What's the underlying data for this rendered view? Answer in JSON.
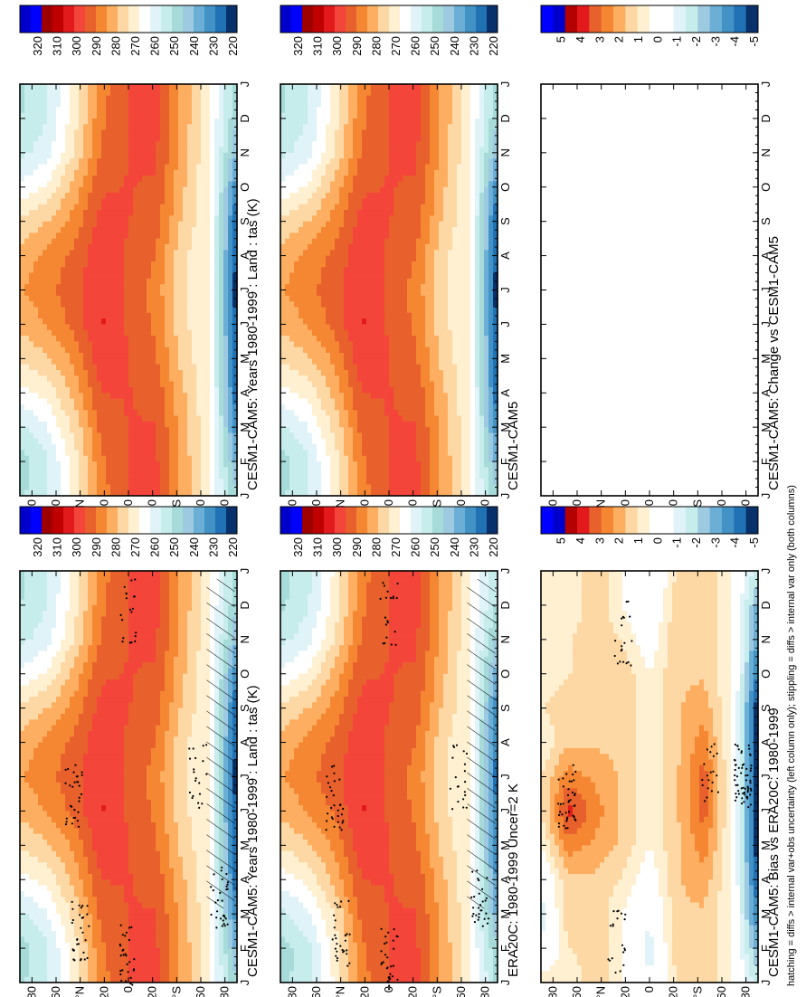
{
  "footer": "hatching = diffs > internal var+obs uncertainty (left column only); stippling = diffs > internal var only (both columns)",
  "month_labels": [
    "J",
    "F",
    "M",
    "A",
    "M",
    "J",
    "J",
    "A",
    "S",
    "O",
    "N",
    "D",
    "J"
  ],
  "y_axis": {
    "lat_max": 90,
    "tick_values": [
      80,
      60,
      40,
      20,
      0,
      -20,
      -40,
      -60,
      -80
    ],
    "tick_labels": [
      "80",
      "60",
      "°N",
      "20",
      "0",
      "20",
      "°S",
      "60",
      "80"
    ]
  },
  "level_colors": {
    "abs": [
      "#08306b",
      "#2171b5",
      "#4292c6",
      "#6baed6",
      "#9ecae1",
      "#a6dbd9",
      "#c6ecec",
      "#e0f3f8",
      "#ffffff",
      "#fff0d2",
      "#fdd8a4",
      "#fdae61",
      "#f58732",
      "#e8602c",
      "#f4453a",
      "#e31a1c",
      "#c00000",
      "#9e0000",
      "#0000ff",
      "#0000cc"
    ],
    "diff": [
      "#08306b",
      "#2171b5",
      "#4292c6",
      "#6baed6",
      "#9ecae1",
      "#c6ecec",
      "#e0f3f8",
      "#ffffff",
      "#ffffff",
      "#fff0d2",
      "#fdd8a4",
      "#fdae61",
      "#f58732",
      "#e8602c",
      "#e31a1c",
      "#b30000",
      "#0000cc",
      "#0000ff"
    ]
  },
  "panels": [
    {
      "id": "model-top",
      "title": "CESM1-CAM5: Years 1980-1999 : Land : tas (K)",
      "kind": "abs",
      "hatch": true,
      "stipple": true
    },
    {
      "id": "model-top-right",
      "title": "CESM1-CAM5: Years 1980-1999 : Land : tas (K)",
      "kind": "abs",
      "hatch": false,
      "stipple": false
    },
    {
      "id": "obs",
      "title": "ERA20C: 1980-1999 Uncer=2 K",
      "kind": "abs",
      "hatch": true,
      "stipple": true
    },
    {
      "id": "model-mid-right",
      "title": "CESM1-CAM5",
      "kind": "abs",
      "hatch": false,
      "stipple": false
    },
    {
      "id": "bias",
      "title": "CESM1-CAM5: Bias vs ERA20C: 1980-1999",
      "kind": "diff",
      "hatch": false,
      "stipple": true
    },
    {
      "id": "change",
      "title": "CESM1-CAM5: Change vs CESM1-CAM5",
      "kind": "blank",
      "hatch": false,
      "stipple": false
    }
  ],
  "colorbars": [
    {
      "id": "cb-top-left",
      "labels": [
        "320",
        "310",
        "300",
        "290",
        "280",
        "270",
        "260",
        "250",
        "240",
        "230",
        "220"
      ]
    },
    {
      "id": "cb-top-right",
      "labels": [
        "320",
        "310",
        "300",
        "290",
        "280",
        "270",
        "260",
        "250",
        "240",
        "230",
        "220"
      ]
    },
    {
      "id": "cb-mid-left",
      "labels": [
        "320",
        "310",
        "300",
        "290",
        "280",
        "270",
        "260",
        "250",
        "240",
        "230",
        "220"
      ]
    },
    {
      "id": "cb-mid-right",
      "labels": [
        "320",
        "310",
        "300",
        "290",
        "280",
        "270",
        "260",
        "250",
        "240",
        "230",
        "220"
      ]
    },
    {
      "id": "cb-bot-left",
      "labels": [
        "5",
        "4",
        "3",
        "2",
        "1",
        "0",
        "-1",
        "-2",
        "-3",
        "-4",
        "-5"
      ]
    },
    {
      "id": "cb-bot-right",
      "labels": [
        "5",
        "4",
        "3",
        "2",
        "1",
        "0",
        "-1",
        "-2",
        "-3",
        "-4",
        "-5"
      ]
    }
  ],
  "chart_data": [
    {
      "type": "heatmap",
      "panel": "model-top",
      "title": "CESM1-CAM5: Years 1980-1999 : Land : tas (K)",
      "xlabel": "month",
      "ylabel": "latitude",
      "clim": [
        220,
        320
      ],
      "x": [
        "J",
        "F",
        "M",
        "A",
        "M",
        "J",
        "J",
        "A",
        "S",
        "O",
        "N",
        "D",
        "J"
      ],
      "y": [
        80,
        60,
        40,
        20,
        0,
        -20,
        -40,
        -60,
        -80
      ],
      "z": [
        [
          252,
          250,
          258,
          268,
          276,
          283,
          286,
          284,
          276,
          266,
          257,
          253,
          252
        ],
        [
          258,
          258,
          264,
          272,
          280,
          287,
          290,
          288,
          281,
          271,
          262,
          259,
          258
        ],
        [
          272,
          273,
          277,
          283,
          288,
          294,
          296,
          294,
          289,
          283,
          276,
          273,
          272
        ],
        [
          290,
          291,
          294,
          298,
          302,
          304,
          303,
          302,
          300,
          297,
          293,
          291,
          290
        ],
        [
          298,
          298,
          298,
          298,
          298,
          297,
          297,
          297,
          298,
          298,
          298,
          298,
          298
        ],
        [
          299,
          299,
          298,
          296,
          293,
          291,
          290,
          292,
          295,
          297,
          299,
          299,
          299
        ],
        [
          285,
          285,
          284,
          282,
          279,
          277,
          276,
          277,
          280,
          282,
          284,
          285,
          285
        ],
        [
          270,
          270,
          270,
          270,
          270,
          270,
          270,
          270,
          270,
          270,
          270,
          270,
          270
        ],
        [
          248,
          240,
          232,
          226,
          223,
          222,
          221,
          222,
          224,
          232,
          242,
          248,
          248
        ]
      ]
    },
    {
      "type": "heatmap",
      "panel": "model-top-right",
      "title": "CESM1-CAM5: Years 1980-1999 : Land : tas (K)",
      "clim": [
        220,
        320
      ],
      "x": [
        "J",
        "F",
        "M",
        "A",
        "M",
        "J",
        "J",
        "A",
        "S",
        "O",
        "N",
        "D",
        "J"
      ],
      "y": [
        80,
        60,
        40,
        20,
        0,
        -20,
        -40,
        -60,
        -80
      ],
      "z": [
        [
          252,
          250,
          258,
          268,
          276,
          283,
          286,
          284,
          276,
          266,
          257,
          253,
          252
        ],
        [
          258,
          258,
          264,
          272,
          280,
          287,
          290,
          288,
          281,
          271,
          262,
          259,
          258
        ],
        [
          272,
          273,
          277,
          283,
          288,
          294,
          296,
          294,
          289,
          283,
          276,
          273,
          272
        ],
        [
          290,
          291,
          294,
          298,
          302,
          304,
          303,
          302,
          300,
          297,
          293,
          291,
          290
        ],
        [
          298,
          298,
          298,
          298,
          298,
          297,
          297,
          297,
          298,
          298,
          298,
          298,
          298
        ],
        [
          299,
          299,
          298,
          296,
          293,
          291,
          290,
          292,
          295,
          297,
          299,
          299,
          299
        ],
        [
          285,
          285,
          284,
          282,
          279,
          277,
          276,
          277,
          280,
          282,
          284,
          285,
          285
        ],
        [
          270,
          270,
          270,
          270,
          270,
          270,
          270,
          270,
          270,
          270,
          270,
          270,
          270
        ],
        [
          248,
          240,
          232,
          226,
          223,
          222,
          221,
          222,
          224,
          232,
          242,
          248,
          248
        ]
      ]
    },
    {
      "type": "heatmap",
      "panel": "obs",
      "title": "ERA20C: 1980-1999 Uncer=2 K",
      "clim": [
        220,
        320
      ],
      "x": [
        "J",
        "F",
        "M",
        "A",
        "M",
        "J",
        "J",
        "A",
        "S",
        "O",
        "N",
        "D",
        "J"
      ],
      "y": [
        80,
        60,
        40,
        20,
        0,
        -20,
        -40,
        -60,
        -80
      ],
      "z": [
        [
          251,
          250,
          257,
          267,
          276,
          283,
          286,
          284,
          276,
          266,
          257,
          252,
          251
        ],
        [
          257,
          257,
          263,
          272,
          280,
          287,
          290,
          288,
          281,
          271,
          262,
          258,
          257
        ],
        [
          271,
          272,
          276,
          283,
          288,
          293,
          296,
          294,
          289,
          283,
          276,
          272,
          271
        ],
        [
          290,
          291,
          294,
          298,
          302,
          304,
          303,
          302,
          300,
          297,
          293,
          291,
          290
        ],
        [
          298,
          298,
          298,
          298,
          298,
          297,
          297,
          297,
          298,
          298,
          298,
          298,
          298
        ],
        [
          299,
          299,
          298,
          296,
          293,
          291,
          290,
          292,
          295,
          297,
          299,
          299,
          299
        ],
        [
          285,
          285,
          284,
          282,
          279,
          277,
          276,
          277,
          280,
          282,
          284,
          285,
          285
        ],
        [
          270,
          270,
          270,
          270,
          270,
          270,
          270,
          270,
          270,
          270,
          270,
          270,
          270
        ],
        [
          252,
          248,
          240,
          234,
          230,
          228,
          227,
          228,
          231,
          238,
          246,
          252,
          252
        ]
      ]
    },
    {
      "type": "heatmap",
      "panel": "model-mid-right",
      "title": "CESM1-CAM5",
      "clim": [
        220,
        320
      ],
      "x": [
        "J",
        "F",
        "M",
        "A",
        "M",
        "J",
        "J",
        "A",
        "S",
        "O",
        "N",
        "D",
        "J"
      ],
      "y": [
        80,
        60,
        40,
        20,
        0,
        -20,
        -40,
        -60,
        -80
      ],
      "z": [
        [
          252,
          250,
          258,
          268,
          276,
          283,
          286,
          284,
          276,
          266,
          257,
          253,
          252
        ],
        [
          258,
          258,
          264,
          272,
          280,
          287,
          290,
          288,
          281,
          271,
          262,
          259,
          258
        ],
        [
          272,
          273,
          277,
          283,
          288,
          294,
          296,
          294,
          289,
          283,
          276,
          273,
          272
        ],
        [
          290,
          291,
          294,
          298,
          302,
          304,
          303,
          302,
          300,
          297,
          293,
          291,
          290
        ],
        [
          298,
          298,
          298,
          298,
          298,
          297,
          297,
          297,
          298,
          298,
          298,
          298,
          298
        ],
        [
          299,
          299,
          298,
          296,
          293,
          291,
          290,
          292,
          295,
          297,
          299,
          299,
          299
        ],
        [
          285,
          285,
          284,
          282,
          279,
          277,
          276,
          277,
          280,
          282,
          284,
          285,
          285
        ],
        [
          270,
          270,
          270,
          270,
          270,
          270,
          270,
          270,
          270,
          270,
          270,
          270,
          270
        ],
        [
          248,
          240,
          232,
          226,
          223,
          222,
          221,
          222,
          224,
          232,
          242,
          248,
          248
        ]
      ]
    },
    {
      "type": "heatmap",
      "panel": "bias",
      "title": "CESM1-CAM5: Bias vs ERA20C: 1980-1999",
      "clim": [
        -5,
        5
      ],
      "x": [
        "J",
        "F",
        "M",
        "A",
        "M",
        "J",
        "J",
        "A",
        "S",
        "O",
        "N",
        "D",
        "J"
      ],
      "y": [
        80,
        60,
        40,
        20,
        0,
        -20,
        -40,
        -60,
        -80
      ],
      "z": [
        [
          0.5,
          -1,
          -1.5,
          -1,
          0,
          0.5,
          0.5,
          0,
          0.5,
          0,
          0,
          0.5,
          0.5
        ],
        [
          0,
          0.5,
          1,
          1,
          2,
          3,
          2,
          1,
          1,
          0.5,
          0.5,
          0,
          0
        ],
        [
          1,
          1,
          1,
          1,
          1.5,
          2,
          1.5,
          1,
          1,
          1,
          1,
          1,
          1
        ],
        [
          0,
          0,
          0,
          0.5,
          1,
          1,
          1,
          1,
          1,
          1,
          0.5,
          0,
          0
        ],
        [
          -1,
          -1.5,
          -1,
          -0.5,
          0,
          0,
          0,
          0,
          0,
          0,
          -0.5,
          -1,
          -1
        ],
        [
          0.5,
          1,
          1,
          1,
          1,
          1,
          1,
          1,
          1,
          1,
          1,
          1,
          0.5
        ],
        [
          1,
          1,
          1,
          1.5,
          2,
          2.5,
          2.5,
          2,
          1.5,
          1,
          1,
          1,
          1
        ],
        [
          0,
          0,
          0,
          0,
          0,
          0,
          0,
          0,
          0,
          0,
          0,
          0,
          0
        ],
        [
          -2,
          -3,
          -4,
          -4.5,
          -5,
          -5,
          -5,
          -5,
          -5,
          -4,
          -3.5,
          -3,
          -2
        ]
      ]
    },
    {
      "type": "heatmap",
      "panel": "change",
      "title": "CESM1-CAM5: Change vs CESM1-CAM5",
      "clim": [
        -5,
        5
      ],
      "x": [
        "J",
        "F",
        "M",
        "A",
        "M",
        "J",
        "J",
        "A",
        "S",
        "O",
        "N",
        "D",
        "J"
      ],
      "y": [
        80,
        60,
        40,
        20,
        0,
        -20,
        -40,
        -60,
        -80
      ],
      "z": []
    }
  ]
}
